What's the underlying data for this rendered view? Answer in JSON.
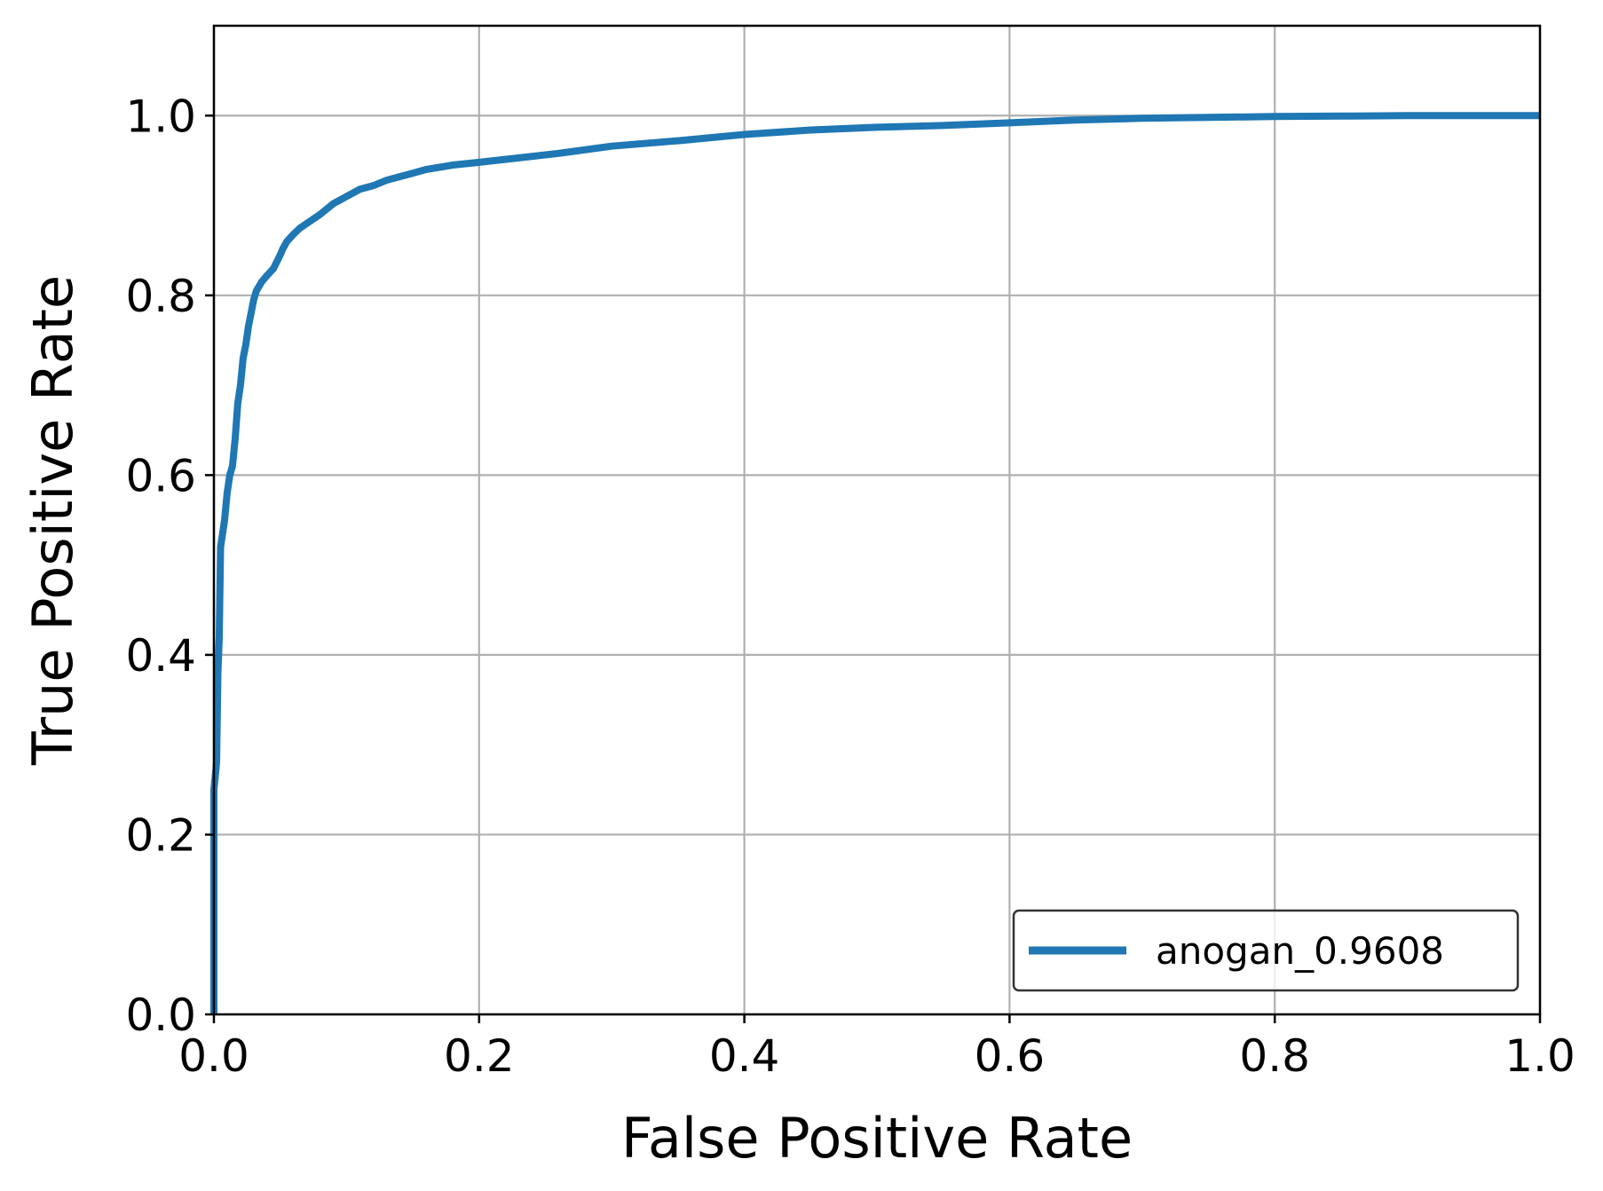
{
  "chart_data": {
    "type": "line",
    "title": "",
    "xlabel": "False Positive Rate",
    "ylabel": "True Positive Rate",
    "xlim": [
      0.0,
      1.0
    ],
    "ylim": [
      0.0,
      1.1
    ],
    "xticks": [
      "0.0",
      "0.2",
      "0.4",
      "0.6",
      "0.8",
      "1.0"
    ],
    "yticks": [
      "0.0",
      "0.2",
      "0.4",
      "0.6",
      "0.8",
      "1.0"
    ],
    "grid": true,
    "legend_position": "lower-right",
    "series": [
      {
        "name": "anogan_0.9608",
        "color": "#1f77b4",
        "x": [
          0.0,
          0.0,
          0.002,
          0.003,
          0.004,
          0.005,
          0.006,
          0.008,
          0.01,
          0.012,
          0.014,
          0.016,
          0.018,
          0.02,
          0.022,
          0.024,
          0.025,
          0.026,
          0.028,
          0.03,
          0.032,
          0.034,
          0.036,
          0.04,
          0.045,
          0.05,
          0.052,
          0.055,
          0.06,
          0.065,
          0.07,
          0.08,
          0.09,
          0.1,
          0.11,
          0.12,
          0.13,
          0.14,
          0.15,
          0.16,
          0.18,
          0.2,
          0.23,
          0.26,
          0.3,
          0.35,
          0.4,
          0.45,
          0.5,
          0.55,
          0.6,
          0.65,
          0.7,
          0.75,
          0.8,
          0.85,
          0.9,
          0.95,
          1.0
        ],
        "y": [
          0.0,
          0.25,
          0.28,
          0.38,
          0.42,
          0.52,
          0.53,
          0.55,
          0.58,
          0.6,
          0.61,
          0.64,
          0.68,
          0.7,
          0.73,
          0.745,
          0.755,
          0.765,
          0.78,
          0.795,
          0.805,
          0.81,
          0.815,
          0.822,
          0.83,
          0.845,
          0.852,
          0.86,
          0.868,
          0.875,
          0.88,
          0.89,
          0.902,
          0.91,
          0.918,
          0.922,
          0.928,
          0.932,
          0.936,
          0.94,
          0.945,
          0.948,
          0.953,
          0.958,
          0.966,
          0.972,
          0.979,
          0.984,
          0.987,
          0.989,
          0.992,
          0.995,
          0.997,
          0.998,
          0.999,
          0.9995,
          1.0,
          1.0,
          1.0
        ]
      }
    ]
  }
}
